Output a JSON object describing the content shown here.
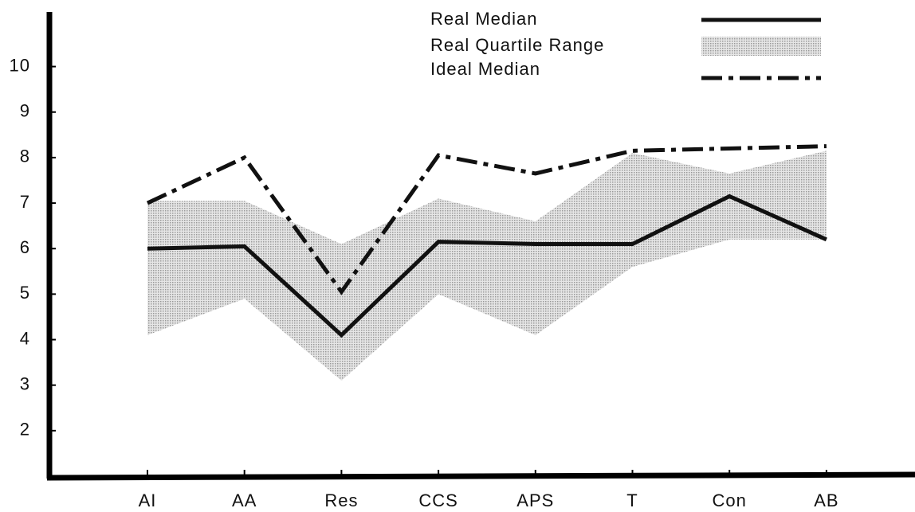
{
  "chart_data": {
    "type": "line",
    "categories": [
      "AI",
      "AA",
      "Res",
      "CCS",
      "APS",
      "T",
      "Con",
      "AB"
    ],
    "series": [
      {
        "name": "Real Median",
        "color": "#111111",
        "style": "solid",
        "values": [
          6.0,
          6.05,
          4.1,
          6.15,
          6.1,
          6.1,
          7.15,
          6.2
        ]
      },
      {
        "name": "Ideal Median",
        "color": "#111111",
        "style": "dashdot",
        "values": [
          7.0,
          8.0,
          5.05,
          8.05,
          7.65,
          8.15,
          8.2,
          8.25
        ]
      }
    ],
    "band": {
      "name": "Real Quartile Range",
      "color": "#c8c8c8",
      "lower": [
        4.1,
        4.9,
        3.1,
        5.0,
        4.1,
        5.6,
        6.2,
        6.2
      ],
      "upper": [
        7.05,
        7.05,
        6.1,
        7.1,
        6.6,
        8.1,
        7.65,
        8.15
      ]
    },
    "ylim": [
      1,
      11.2
    ],
    "yticks": [
      2,
      3,
      4,
      5,
      6,
      7,
      8,
      9,
      10
    ],
    "legend": "top-right"
  }
}
